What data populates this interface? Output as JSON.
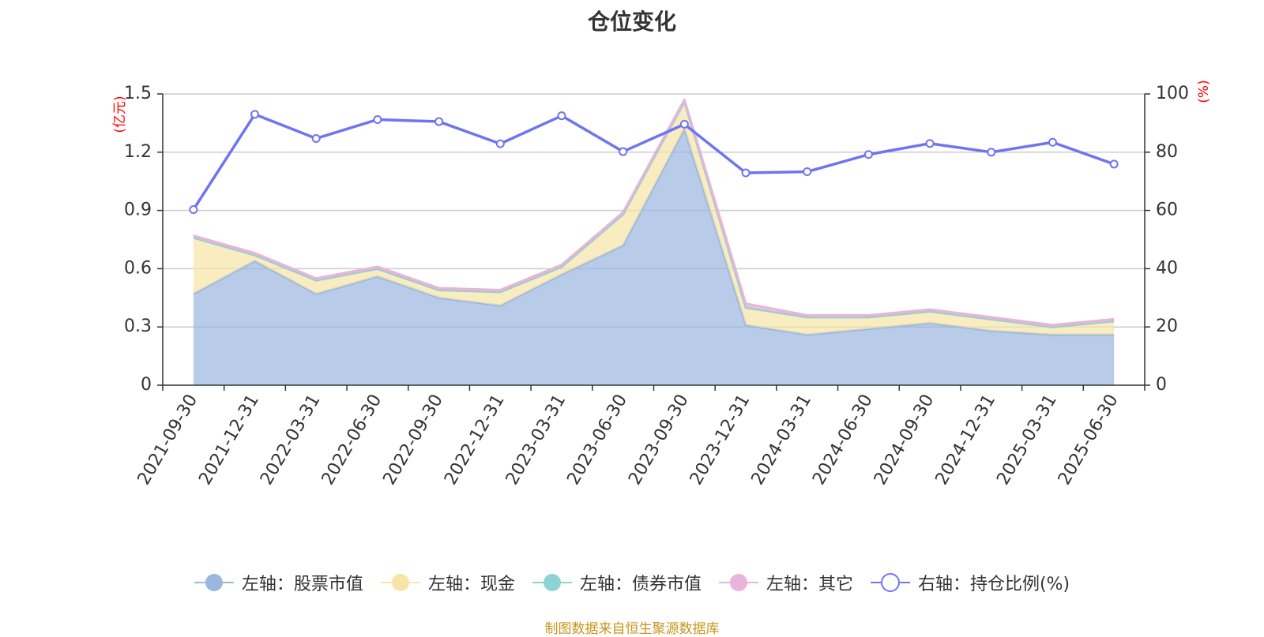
{
  "chart_data": {
    "type": "area",
    "title": "仓位变化",
    "categories": [
      "2021-09-30",
      "2021-12-31",
      "2022-03-31",
      "2022-06-30",
      "2022-09-30",
      "2022-12-31",
      "2023-03-31",
      "2023-06-30",
      "2023-09-30",
      "2023-12-31",
      "2024-03-31",
      "2024-06-30",
      "2024-09-30",
      "2024-12-31",
      "2025-03-31",
      "2025-06-30"
    ],
    "x_tick_labels": [
      "2021-09-30",
      "2021-12-31",
      "2022-03-31",
      "2022-06-30",
      "2022-09-30",
      "2022-12-31",
      "2023-03-31",
      "2023-06-30",
      "2023-09-30",
      "2023-12-31",
      "2024-03-31",
      "2024-06-30",
      "2024-09-30",
      "2024-12-31",
      "2025-03-31",
      "2025-06-30"
    ],
    "left_axis": {
      "unit": "(亿元)",
      "ylim": [
        0,
        1.5
      ],
      "ticks": [
        "0",
        "0.3",
        "0.6",
        "0.9",
        "1.2",
        "1.5"
      ]
    },
    "right_axis": {
      "unit": "(%)",
      "ylim": [
        0,
        100
      ],
      "ticks": [
        "0",
        "20",
        "40",
        "60",
        "80",
        "100"
      ]
    },
    "grid": true,
    "legend_position": "bottom",
    "series": [
      {
        "name": "左轴：股票市值",
        "axis": "left",
        "kind": "stacked-area",
        "color": "#9ab7e0",
        "values": [
          0.47,
          0.64,
          0.47,
          0.56,
          0.45,
          0.41,
          0.57,
          0.72,
          1.32,
          0.31,
          0.26,
          0.29,
          0.32,
          0.28,
          0.26,
          0.26
        ]
      },
      {
        "name": "左轴：现金",
        "axis": "left",
        "kind": "stacked-area",
        "color": "#f7e4a6",
        "values": [
          0.29,
          0.03,
          0.07,
          0.04,
          0.04,
          0.07,
          0.04,
          0.16,
          0.14,
          0.09,
          0.09,
          0.06,
          0.06,
          0.06,
          0.04,
          0.07
        ]
      },
      {
        "name": "左轴：债券市值",
        "axis": "left",
        "kind": "stacked-area",
        "color": "#8fd2d2",
        "values": [
          0,
          0,
          0,
          0,
          0,
          0,
          0,
          0,
          0,
          0,
          0,
          0,
          0,
          0,
          0,
          0
        ]
      },
      {
        "name": "左轴：其它",
        "axis": "left",
        "kind": "stacked-area",
        "color": "#e8b4d8",
        "values": [
          0.01,
          0.01,
          0.01,
          0.01,
          0.01,
          0.01,
          0.01,
          0.01,
          0.01,
          0.02,
          0.01,
          0.01,
          0.01,
          0.01,
          0.01,
          0.01
        ]
      },
      {
        "name": "右轴：持仓比例(%)",
        "axis": "right",
        "kind": "line",
        "color": "#7074f0",
        "values": [
          60.3,
          93.0,
          84.7,
          91.2,
          90.5,
          82.9,
          92.5,
          80.2,
          89.6,
          72.9,
          73.3,
          79.2,
          83.0,
          80.0,
          83.4,
          75.9
        ]
      }
    ]
  },
  "source_note": "制图数据来自恒生聚源数据库"
}
